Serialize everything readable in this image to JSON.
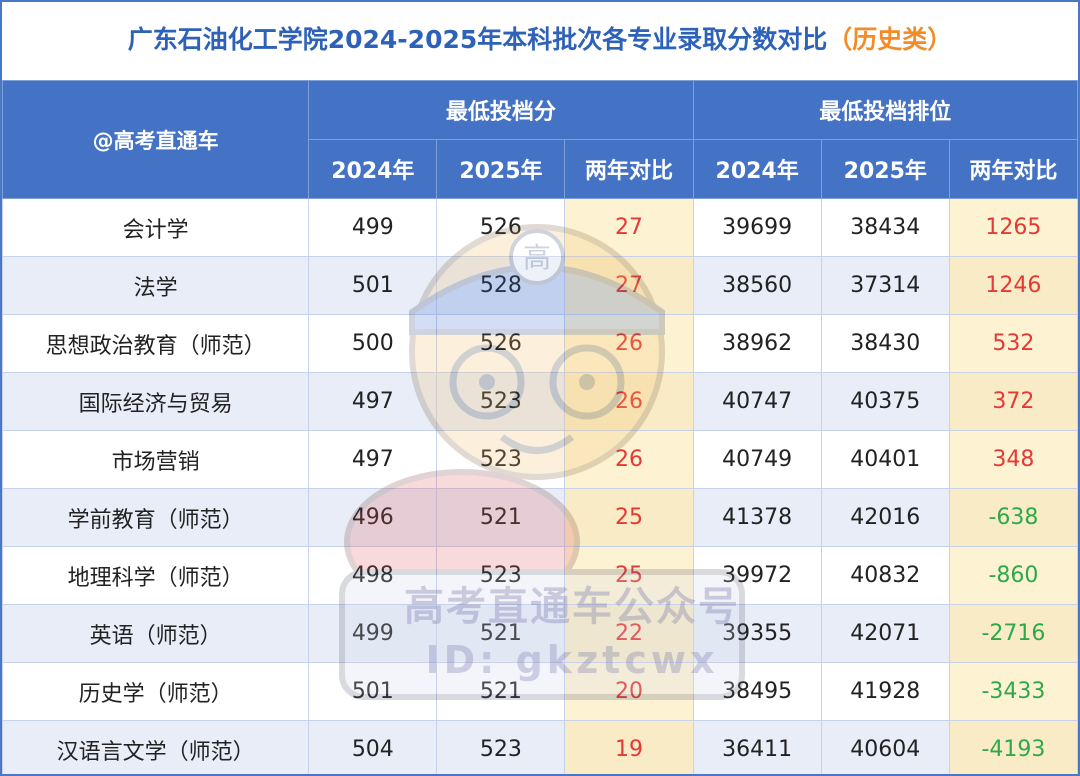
{
  "title": {
    "main": "广东石油化工学院2024-2025年本科批次各专业录取分数对比",
    "sub": "（历史类）"
  },
  "header": {
    "brand": "@高考直通车",
    "group_score": "最低投档分",
    "group_rank": "最低投档排位",
    "col_2024": "2024年",
    "col_2025": "2025年",
    "col_diff": "两年对比"
  },
  "rows": [
    {
      "major": "会计学",
      "s2024": "499",
      "s2025": "526",
      "sdiff": "27",
      "r2024": "39699",
      "r2025": "38434",
      "rdiff": "1265"
    },
    {
      "major": "法学",
      "s2024": "501",
      "s2025": "528",
      "sdiff": "27",
      "r2024": "38560",
      "r2025": "37314",
      "rdiff": "1246"
    },
    {
      "major": "思想政治教育（师范）",
      "s2024": "500",
      "s2025": "526",
      "sdiff": "26",
      "r2024": "38962",
      "r2025": "38430",
      "rdiff": "532"
    },
    {
      "major": "国际经济与贸易",
      "s2024": "497",
      "s2025": "523",
      "sdiff": "26",
      "r2024": "40747",
      "r2025": "40375",
      "rdiff": "372"
    },
    {
      "major": "市场营销",
      "s2024": "497",
      "s2025": "523",
      "sdiff": "26",
      "r2024": "40749",
      "r2025": "40401",
      "rdiff": "348"
    },
    {
      "major": "学前教育（师范）",
      "s2024": "496",
      "s2025": "521",
      "sdiff": "25",
      "r2024": "41378",
      "r2025": "42016",
      "rdiff": "-638"
    },
    {
      "major": "地理科学（师范）",
      "s2024": "498",
      "s2025": "523",
      "sdiff": "25",
      "r2024": "39972",
      "r2025": "40832",
      "rdiff": "-860"
    },
    {
      "major": "英语（师范）",
      "s2024": "499",
      "s2025": "521",
      "sdiff": "22",
      "r2024": "39355",
      "r2025": "42071",
      "rdiff": "-2716"
    },
    {
      "major": "历史学（师范）",
      "s2024": "501",
      "s2025": "521",
      "sdiff": "20",
      "r2024": "38495",
      "r2025": "41928",
      "rdiff": "-3433"
    },
    {
      "major": "汉语言文学（师范）",
      "s2024": "504",
      "s2025": "523",
      "sdiff": "19",
      "r2024": "36411",
      "r2025": "40604",
      "rdiff": "-4193"
    }
  ],
  "watermark": {
    "line1": "高考直通车公众号",
    "line2": "ID: gkztcwx",
    "badge": "高"
  },
  "colors": {
    "header_bg": "#4472c4",
    "title": "#2e62b8",
    "subtitle": "#f28c28",
    "positive": "#e53935",
    "negative": "#2ea84a",
    "diff_col_bg": "#fdf3d3"
  }
}
